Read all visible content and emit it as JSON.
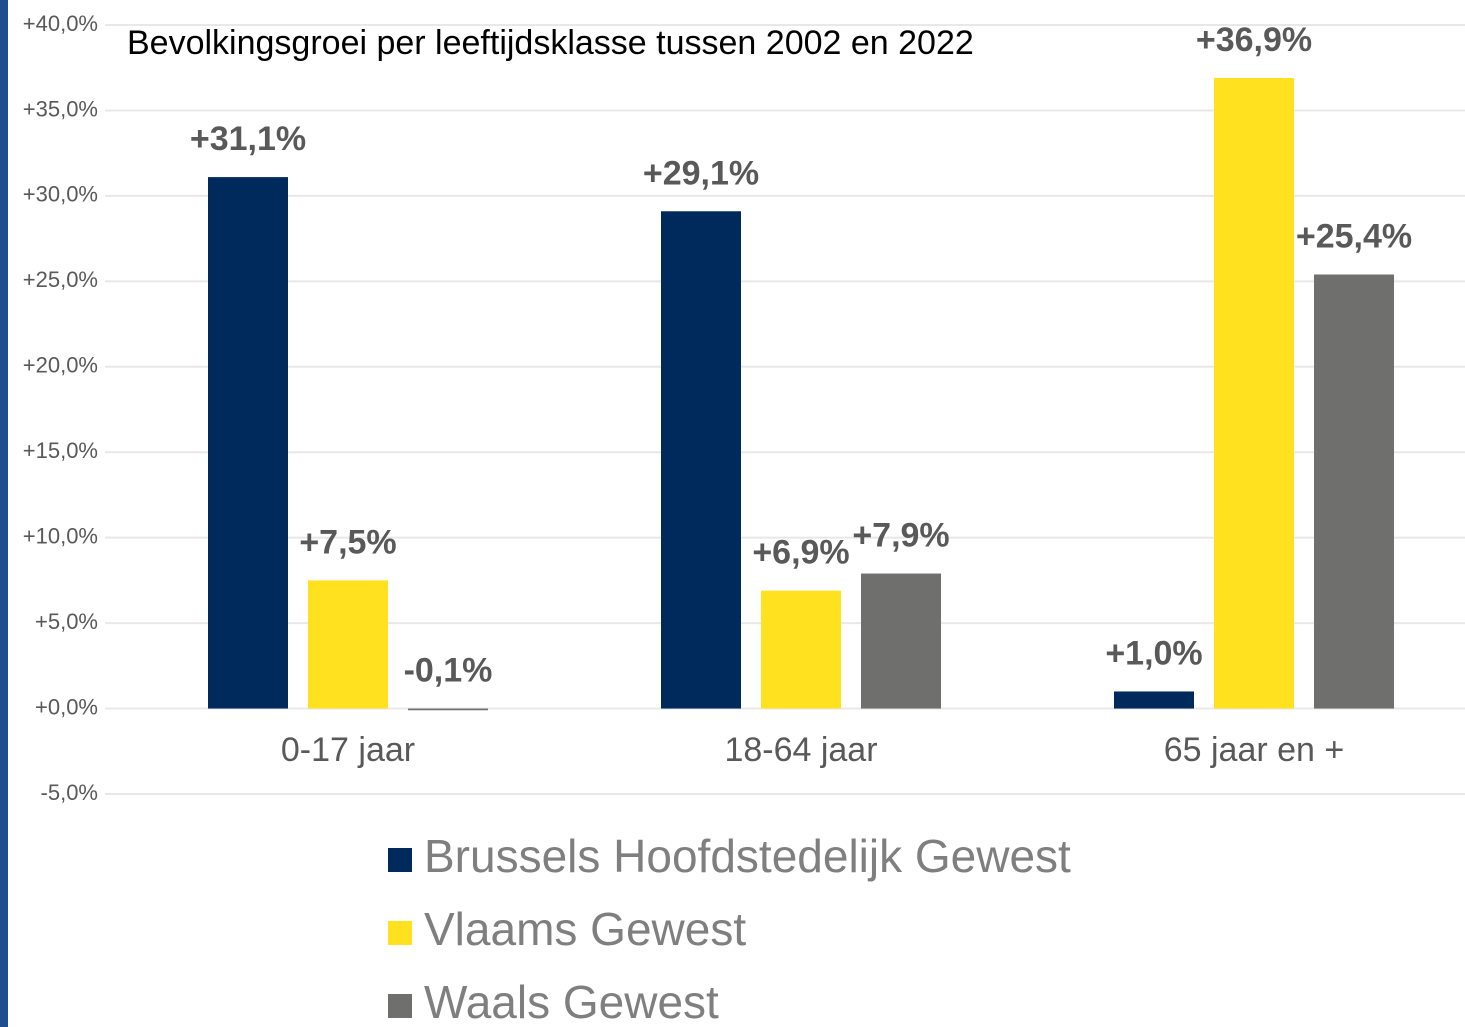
{
  "chart_data": {
    "type": "bar",
    "title": "Bevolkingsgroei per leeftijdsklasse tussen 2002 en 2022",
    "categories": [
      "0-17 jaar",
      "18-64 jaar",
      "65 jaar en +"
    ],
    "series": [
      {
        "name": "Brussels Hoofdstedelijk Gewest",
        "color": "#002a5c",
        "values": [
          31.1,
          29.1,
          1.0
        ],
        "value_labels": [
          "+31,1%",
          "+29,1%",
          "+1,0%"
        ]
      },
      {
        "name": "Vlaams Gewest",
        "color": "#ffe11f",
        "values": [
          7.5,
          6.9,
          36.9
        ],
        "value_labels": [
          "+7,5%",
          "+6,9%",
          "+36,9%"
        ]
      },
      {
        "name": "Waals Gewest",
        "color": "#6f6f6e",
        "values": [
          -0.1,
          7.9,
          25.4
        ],
        "value_labels": [
          "-0,1%",
          "+7,9%",
          "+25,4%"
        ]
      }
    ],
    "ylim": [
      -5,
      40
    ],
    "yticks": [
      {
        "value": 40,
        "label": "+40,0%"
      },
      {
        "value": 35,
        "label": "+35,0%"
      },
      {
        "value": 30,
        "label": "+30,0%"
      },
      {
        "value": 25,
        "label": "+25,0%"
      },
      {
        "value": 20,
        "label": "+20,0%"
      },
      {
        "value": 15,
        "label": "+15,0%"
      },
      {
        "value": 10,
        "label": "+10,0%"
      },
      {
        "value": 5,
        "label": "+5,0%"
      },
      {
        "value": 0,
        "label": "+0,0%"
      },
      {
        "value": -5,
        "label": "-5,0%"
      }
    ],
    "grid": true,
    "legend": "bottom"
  }
}
